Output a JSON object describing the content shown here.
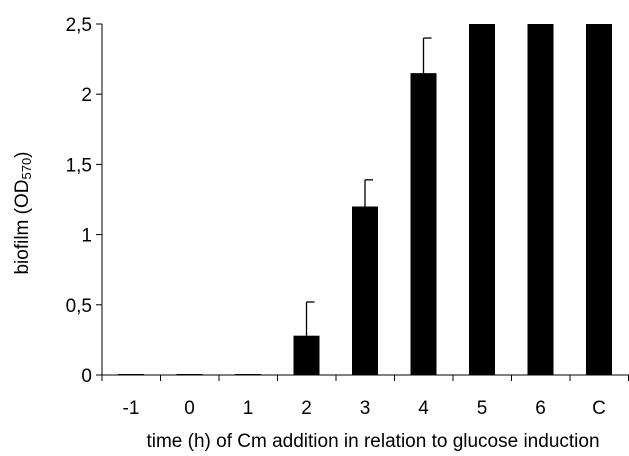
{
  "chart_data": {
    "type": "bar",
    "categories": [
      "-1",
      "0",
      "1",
      "2",
      "3",
      "4",
      "5",
      "6",
      "C"
    ],
    "values": [
      0,
      0,
      0,
      0.28,
      1.2,
      2.15,
      2.5,
      2.5,
      2.5
    ],
    "error_upper": [
      0,
      0,
      0,
      0.24,
      0.19,
      0.25,
      0,
      0,
      0
    ],
    "title": "",
    "xlabel": "time (h) of Cm addition in relation to glucose induction",
    "ylabel": {
      "main": "biofilm (OD",
      "subscript": "570",
      "close": ")"
    },
    "ylim": [
      0,
      2.5
    ],
    "yticks": [
      "0",
      "0,5",
      "1",
      "1,5",
      "2",
      "2,5"
    ],
    "ytick_values": [
      0,
      0.5,
      1,
      1.5,
      2,
      2.5
    ],
    "grid": false,
    "legend": "none",
    "bar_color": "#000000"
  }
}
